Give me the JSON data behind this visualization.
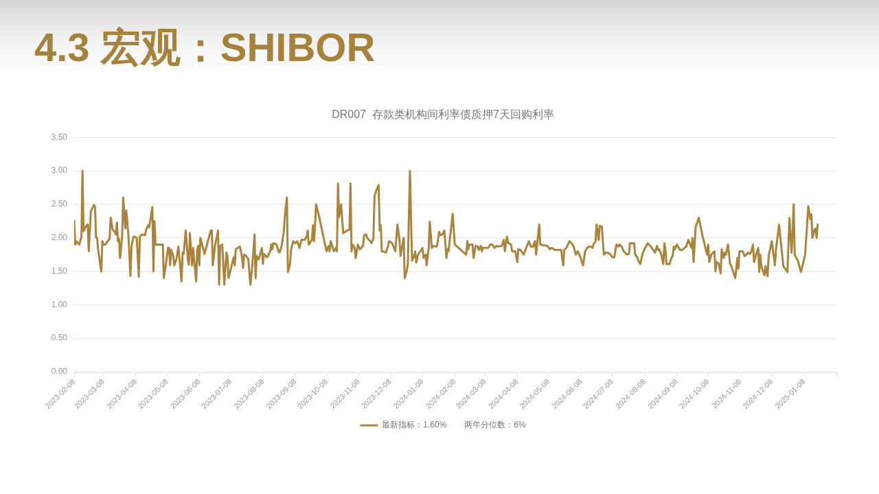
{
  "chart_data": {
    "type": "line",
    "title": "4.3 宏观：SHIBOR",
    "subtitle": "DR007  存款类机构间利率债质押7天回购利率",
    "x": [
      "2023-02-08",
      "2023-02-09",
      "2023-02-10",
      "2023-02-13",
      "2023-02-15",
      "2023-02-16",
      "2023-02-17",
      "2023-02-20",
      "2023-02-21",
      "2023-02-22",
      "2023-02-24",
      "2023-02-27",
      "2023-02-28",
      "2023-03-01",
      "2023-03-02",
      "2023-03-03",
      "2023-03-06",
      "2023-03-07",
      "2023-03-08",
      "2023-03-10",
      "2023-03-14",
      "2023-03-15",
      "2023-03-17",
      "2023-03-19",
      "2023-03-20",
      "2023-03-21",
      "2023-03-22",
      "2023-03-23",
      "2023-03-24",
      "2023-03-26",
      "2023-03-27",
      "2023-03-29",
      "2023-03-30",
      "2023-04-01",
      "2023-04-03",
      "2023-04-04",
      "2023-04-06",
      "2023-04-09",
      "2023-04-11",
      "2023-04-12",
      "2023-04-14",
      "2023-04-17",
      "2023-04-18",
      "2023-04-20",
      "2023-04-21",
      "2023-04-24",
      "2023-04-25",
      "2023-04-26",
      "2023-04-27",
      "2023-05-04",
      "2023-05-05",
      "2023-05-07",
      "2023-05-09",
      "2023-05-10",
      "2023-05-11",
      "2023-05-12",
      "2023-05-14",
      "2023-05-15",
      "2023-05-17",
      "2023-05-19",
      "2023-05-22",
      "2023-05-23",
      "2023-05-24",
      "2023-05-26",
      "2023-05-28",
      "2023-05-29",
      "2023-05-30",
      "2023-06-01",
      "2023-06-02",
      "2023-06-05",
      "2023-06-06",
      "2023-06-07",
      "2023-06-08",
      "2023-06-09",
      "2023-06-13",
      "2023-06-19",
      "2023-06-20",
      "2023-06-21",
      "2023-06-23",
      "2023-06-26",
      "2023-06-27",
      "2023-06-28",
      "2023-06-30",
      "2023-07-02",
      "2023-07-04",
      "2023-07-05",
      "2023-07-06",
      "2023-07-11",
      "2023-07-12",
      "2023-07-13",
      "2023-07-17",
      "2023-07-19",
      "2023-07-20",
      "2023-07-21",
      "2023-07-23",
      "2023-07-25",
      "2023-07-27",
      "2023-07-29",
      "2023-07-31",
      "2023-08-01",
      "2023-08-02",
      "2023-08-04",
      "2023-08-07",
      "2023-08-08",
      "2023-08-09",
      "2023-08-12",
      "2023-08-15",
      "2023-08-16",
      "2023-08-17",
      "2023-08-18",
      "2023-08-21",
      "2023-08-23",
      "2023-08-24",
      "2023-08-26",
      "2023-08-28",
      "2023-08-29",
      "2023-08-31",
      "2023-09-01",
      "2023-09-03",
      "2023-09-04",
      "2023-09-06",
      "2023-09-08",
      "2023-09-10",
      "2023-09-12",
      "2023-09-14",
      "2023-09-17",
      "2023-09-19",
      "2023-09-20",
      "2023-09-21",
      "2023-09-24",
      "2023-09-25",
      "2023-09-26",
      "2023-09-27",
      "2023-09-28",
      "2023-10-01",
      "2023-10-04",
      "2023-10-08",
      "2023-10-10",
      "2023-10-11",
      "2023-10-12",
      "2023-10-14",
      "2023-10-15",
      "2023-10-17",
      "2023-10-18",
      "2023-10-19",
      "2023-10-20",
      "2023-10-21",
      "2023-10-22",
      "2023-10-24",
      "2023-10-29",
      "2023-10-30",
      "2023-10-31",
      "2023-11-01",
      "2023-11-02",
      "2023-11-04",
      "2023-11-05",
      "2023-11-07",
      "2023-11-09",
      "2023-11-12",
      "2023-11-13",
      "2023-11-15",
      "2023-11-16",
      "2023-11-19",
      "2023-11-20",
      "2023-11-22",
      "2023-11-23",
      "2023-11-25",
      "2023-11-27",
      "2023-11-28",
      "2023-11-29",
      "2023-11-30",
      "2023-12-03",
      "2023-12-04",
      "2023-12-06",
      "2023-12-07",
      "2023-12-10",
      "2023-12-13",
      "2023-12-15",
      "2023-12-17",
      "2023-12-18",
      "2023-12-21",
      "2023-12-22",
      "2023-12-24",
      "2023-12-25",
      "2023-12-27",
      "2023-12-29",
      "2023-12-31",
      "2024-01-01",
      "2024-01-02",
      "2024-01-04",
      "2024-01-07",
      "2024-01-08",
      "2024-01-09",
      "2024-01-11",
      "2024-01-12",
      "2024-01-14",
      "2024-01-15",
      "2024-01-17",
      "2024-01-18",
      "2024-01-21",
      "2024-01-22",
      "2024-01-24",
      "2024-01-25",
      "2024-01-27",
      "2024-01-29",
      "2024-01-31",
      "2024-02-01",
      "2024-02-02",
      "2024-02-06",
      "2024-02-08",
      "2024-02-19",
      "2024-02-20",
      "2024-02-21",
      "2024-02-22",
      "2024-02-25",
      "2024-02-26",
      "2024-02-28",
      "2024-03-01",
      "2024-03-02",
      "2024-03-04",
      "2024-03-05",
      "2024-03-06",
      "2024-03-11",
      "2024-03-13",
      "2024-03-15",
      "2024-03-17",
      "2024-03-19",
      "2024-03-21",
      "2024-03-24",
      "2024-03-26",
      "2024-03-27",
      "2024-03-29",
      "2024-03-30",
      "2024-04-02",
      "2024-04-03",
      "2024-04-06",
      "2024-04-08",
      "2024-04-09",
      "2024-04-11",
      "2024-04-14",
      "2024-04-16",
      "2024-04-19",
      "2024-04-21",
      "2024-04-23",
      "2024-04-25",
      "2024-04-26",
      "2024-04-29",
      "2024-04-30",
      "2024-05-07",
      "2024-05-09",
      "2024-05-11",
      "2024-05-14",
      "2024-05-20",
      "2024-05-22",
      "2024-05-23",
      "2024-05-25",
      "2024-05-28",
      "2024-05-30",
      "2024-06-01",
      "2024-06-03",
      "2024-06-05",
      "2024-06-07",
      "2024-06-10",
      "2024-06-12",
      "2024-06-14",
      "2024-06-16",
      "2024-06-18",
      "2024-06-19",
      "2024-06-20",
      "2024-06-22",
      "2024-06-23",
      "2024-06-25",
      "2024-06-26",
      "2024-06-28",
      "2024-06-30",
      "2024-07-02",
      "2024-07-03",
      "2024-07-06",
      "2024-07-08",
      "2024-07-10",
      "2024-07-12",
      "2024-07-14",
      "2024-07-15",
      "2024-07-17",
      "2024-07-19",
      "2024-07-22",
      "2024-07-24",
      "2024-07-25",
      "2024-07-29",
      "2024-07-30",
      "2024-08-01",
      "2024-08-02",
      "2024-08-04",
      "2024-08-06",
      "2024-08-08",
      "2024-08-11",
      "2024-08-14",
      "2024-08-18",
      "2024-08-20",
      "2024-08-21",
      "2024-08-22",
      "2024-08-24",
      "2024-08-26",
      "2024-08-27",
      "2024-08-28",
      "2024-08-29",
      "2024-09-01",
      "2024-09-03",
      "2024-09-04",
      "2024-09-05",
      "2024-09-06",
      "2024-09-08",
      "2024-09-11",
      "2024-09-13",
      "2024-09-17",
      "2024-09-19",
      "2024-09-22",
      "2024-09-23",
      "2024-09-24",
      "2024-09-26",
      "2024-09-29",
      "2024-10-03",
      "2024-10-07",
      "2024-10-08",
      "2024-10-09",
      "2024-10-11",
      "2024-10-14",
      "2024-10-15",
      "2024-10-16",
      "2024-10-18",
      "2024-10-20",
      "2024-10-21",
      "2024-10-23",
      "2024-10-24",
      "2024-10-25",
      "2024-10-27",
      "2024-10-29",
      "2024-10-30",
      "2024-11-03",
      "2024-11-05",
      "2024-11-06",
      "2024-11-07",
      "2024-11-10",
      "2024-11-12",
      "2024-11-14",
      "2024-11-15",
      "2024-11-17",
      "2024-11-18",
      "2024-11-20",
      "2024-11-21",
      "2024-11-23",
      "2024-11-25",
      "2024-11-26",
      "2024-11-27",
      "2024-11-28",
      "2024-12-01",
      "2024-12-02",
      "2024-12-04",
      "2024-12-05",
      "2024-12-08",
      "2024-12-11",
      "2024-12-12",
      "2024-12-15",
      "2024-12-19",
      "2024-12-23",
      "2024-12-25",
      "2024-12-27",
      "2024-12-28",
      "2024-12-29",
      "2024-12-30",
      "2025-01-02",
      "2025-01-05",
      "2025-01-09",
      "2025-01-12",
      "2025-01-14",
      "2025-01-15",
      "2025-01-16",
      "2025-01-18",
      "2025-01-19",
      "2025-01-20",
      "2025-01-21"
    ],
    "series": [
      {
        "name": "最新指标：1.60%",
        "color": "#a9843a",
        "values": [
          2.25,
          1.9,
          1.95,
          1.9,
          2.02,
          3.0,
          2.1,
          2.19,
          2.2,
          1.8,
          2.4,
          2.49,
          2.46,
          2.0,
          2.0,
          1.82,
          1.5,
          1.95,
          1.9,
          1.9,
          1.99,
          2.3,
          2.12,
          2.09,
          2.05,
          2.23,
          1.95,
          1.99,
          1.7,
          2.02,
          2.6,
          2.14,
          2.41,
          2.04,
          1.43,
          1.88,
          2.02,
          2.0,
          1.42,
          2.02,
          2.05,
          2.04,
          2.12,
          2.19,
          2.16,
          2.46,
          1.5,
          2.25,
          1.9,
          1.9,
          1.4,
          1.61,
          1.85,
          1.85,
          1.59,
          1.82,
          1.73,
          1.59,
          1.68,
          1.87,
          1.35,
          1.78,
          1.76,
          2.11,
          1.68,
          1.6,
          2.07,
          1.59,
          1.85,
          1.35,
          1.82,
          1.88,
          1.59,
          2.0,
          1.76,
          2.11,
          2.11,
          1.59,
          1.88,
          2.11,
          1.3,
          1.88,
          1.9,
          1.3,
          1.78,
          1.73,
          1.4,
          1.71,
          1.59,
          1.83,
          1.87,
          1.71,
          1.55,
          1.75,
          1.73,
          1.68,
          1.3,
          1.61,
          2.05,
          1.4,
          1.73,
          1.68,
          1.85,
          1.61,
          1.76,
          1.71,
          1.8,
          1.9,
          1.83,
          1.92,
          1.9,
          1.8,
          1.78,
          1.88,
          2.09,
          2.31,
          2.6,
          1.49,
          1.61,
          1.82,
          1.95,
          1.92,
          1.95,
          1.85,
          1.97,
          1.97,
          2.02,
          2.11,
          1.9,
          1.97,
          2.19,
          1.95,
          2.19,
          2.5,
          2.31,
          2.09,
          1.8,
          1.88,
          1.8,
          1.95,
          1.85,
          1.8,
          1.85,
          1.8,
          2.81,
          2.31,
          2.4,
          2.5,
          2.07,
          2.12,
          2.12,
          2.81,
          1.8,
          1.9,
          1.85,
          1.7,
          1.9,
          1.83,
          1.88,
          2.04,
          2.05,
          2.0,
          1.95,
          1.92,
          1.99,
          2.62,
          2.72,
          2.79,
          2.11,
          2.19,
          1.8,
          1.79,
          1.78,
          1.88,
          1.95,
          1.92,
          1.8,
          2.2,
          1.97,
          1.73,
          2.0,
          1.4,
          1.51,
          1.61,
          3.0,
          1.66,
          1.73,
          1.8,
          1.63,
          1.76,
          1.82,
          1.85,
          1.7,
          1.75,
          1.59,
          1.85,
          2.24,
          1.85,
          1.88,
          1.87,
          1.88,
          2.09,
          2.04,
          2.05,
          2.11,
          1.7,
          1.83,
          1.8,
          2.36,
          1.9,
          1.75,
          1.95,
          1.83,
          1.9,
          1.9,
          1.7,
          1.88,
          1.87,
          1.82,
          1.88,
          1.8,
          1.85,
          1.85,
          1.9,
          1.9,
          1.85,
          1.88,
          1.87,
          1.88,
          1.97,
          1.8,
          2.02,
          1.93,
          1.9,
          1.8,
          1.8,
          1.64,
          1.83,
          1.82,
          1.75,
          1.83,
          1.95,
          1.87,
          1.87,
          1.95,
          1.75,
          2.2,
          1.9,
          1.88,
          1.83,
          1.85,
          1.82,
          1.82,
          1.59,
          1.82,
          1.85,
          1.95,
          1.92,
          1.87,
          1.75,
          1.8,
          1.73,
          1.59,
          1.8,
          1.85,
          1.87,
          1.87,
          1.85,
          1.9,
          1.95,
          2.2,
          1.97,
          2.18,
          2.17,
          1.75,
          1.78,
          1.78,
          1.76,
          1.71,
          1.71,
          1.9,
          1.87,
          1.9,
          1.87,
          1.8,
          1.75,
          1.76,
          1.92,
          1.92,
          1.75,
          1.71,
          1.66,
          1.61,
          1.76,
          1.83,
          1.92,
          1.87,
          1.78,
          1.88,
          1.82,
          1.83,
          1.75,
          1.61,
          1.92,
          1.83,
          1.61,
          1.61,
          1.71,
          1.73,
          1.87,
          1.83,
          1.9,
          1.82,
          1.82,
          1.87,
          1.97,
          1.85,
          2.0,
          1.64,
          2.16,
          2.3,
          2.0,
          1.75,
          1.9,
          1.64,
          1.75,
          1.8,
          1.5,
          1.64,
          1.62,
          1.47,
          1.83,
          1.7,
          1.78,
          1.75,
          1.9,
          1.61,
          1.59,
          1.4,
          1.7,
          1.54,
          1.8,
          1.8,
          1.73,
          1.75,
          1.78,
          1.76,
          1.78,
          1.9,
          1.64,
          1.75,
          1.85,
          1.49,
          1.75,
          1.58,
          1.44,
          1.58,
          1.43,
          1.73,
          1.95,
          1.59,
          1.82,
          2.2,
          1.58,
          1.49,
          2.3,
          1.78,
          2.09,
          2.5,
          1.75,
          1.66,
          1.49,
          1.75,
          2.47,
          2.28,
          2.35,
          2.0,
          2.12,
          2.14,
          2.0,
          2.2
        ]
      }
    ],
    "xlim": [
      "2023-02-08",
      "2025-02-08"
    ],
    "xticks": [
      "2023-02-08",
      "2023-03-08",
      "2023-04-08",
      "2023-05-08",
      "2023-06-08",
      "2023-07-08",
      "2023-08-08",
      "2023-09-08",
      "2023-10-08",
      "2023-11-08",
      "2023-12-08",
      "2024-01-08",
      "2024-02-08",
      "2024-03-08",
      "2024-04-08",
      "2024-05-08",
      "2024-06-08",
      "2024-07-08",
      "2024-08-08",
      "2024-09-08",
      "2024-10-08",
      "2024-11-08",
      "2024-12-08",
      "2025-01-08",
      {
        "value": "2025-02-08",
        "label": null
      }
    ],
    "ylim": [
      0,
      3.5
    ],
    "yticks": [
      {
        "value": 0,
        "label": "0.00"
      },
      {
        "value": 0.5,
        "label": "0.50"
      },
      {
        "value": 1,
        "label": "1.00"
      },
      {
        "value": 1.5,
        "label": "1.50"
      },
      {
        "value": 2,
        "label": "2.00"
      },
      {
        "value": 2.5,
        "label": "2.50"
      },
      {
        "value": 3,
        "label": "3.00"
      },
      {
        "value": 3.5,
        "label": "3.50"
      }
    ],
    "grid": "y",
    "legend": "bottom",
    "marker": "none",
    "line_style": "solid",
    "annotations": [
      "两年分位数：6%"
    ]
  }
}
